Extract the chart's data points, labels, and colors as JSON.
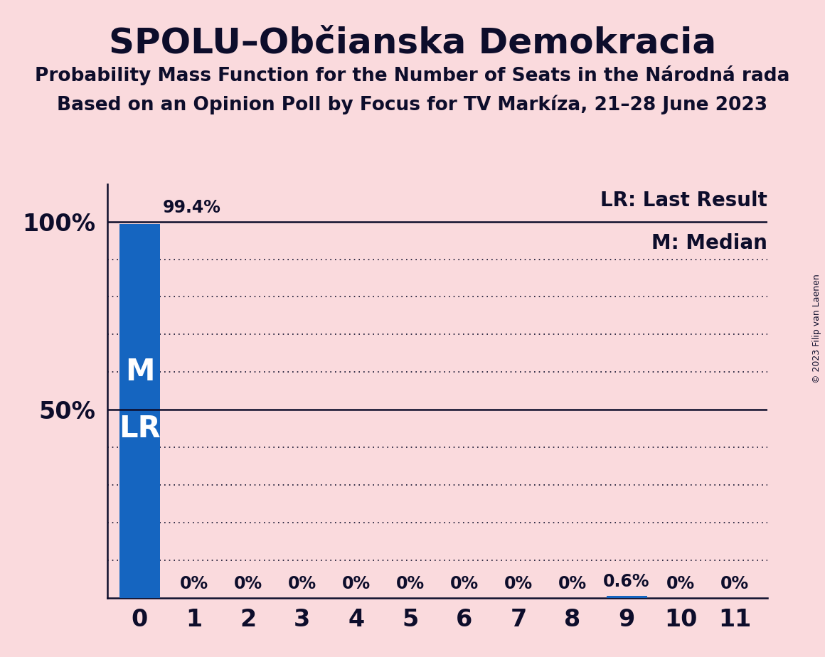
{
  "title": "SPOLU–Občianska Demokracia",
  "subtitle1": "Probability Mass Function for the Number of Seats in the Národná rada",
  "subtitle2": "Based on an Opinion Poll by Focus for TV Markíza, 21–28 June 2023",
  "copyright": "© 2023 Filip van Laenen",
  "x_values": [
    0,
    1,
    2,
    3,
    4,
    5,
    6,
    7,
    8,
    9,
    10,
    11
  ],
  "y_values": [
    99.4,
    0.0,
    0.0,
    0.0,
    0.0,
    0.0,
    0.0,
    0.0,
    0.0,
    0.6,
    0.0,
    0.0
  ],
  "bar_labels": [
    "99.4%",
    "0%",
    "0%",
    "0%",
    "0%",
    "0%",
    "0%",
    "0%",
    "0%",
    "0.6%",
    "0%",
    "0%"
  ],
  "bar_color": "#1565C0",
  "background_color": "#FADADD",
  "text_color": "#0D0D2B",
  "legend_lr": "LR: Last Result",
  "legend_m": "M: Median",
  "figsize": [
    11.6,
    9.24
  ],
  "dpi": 100
}
